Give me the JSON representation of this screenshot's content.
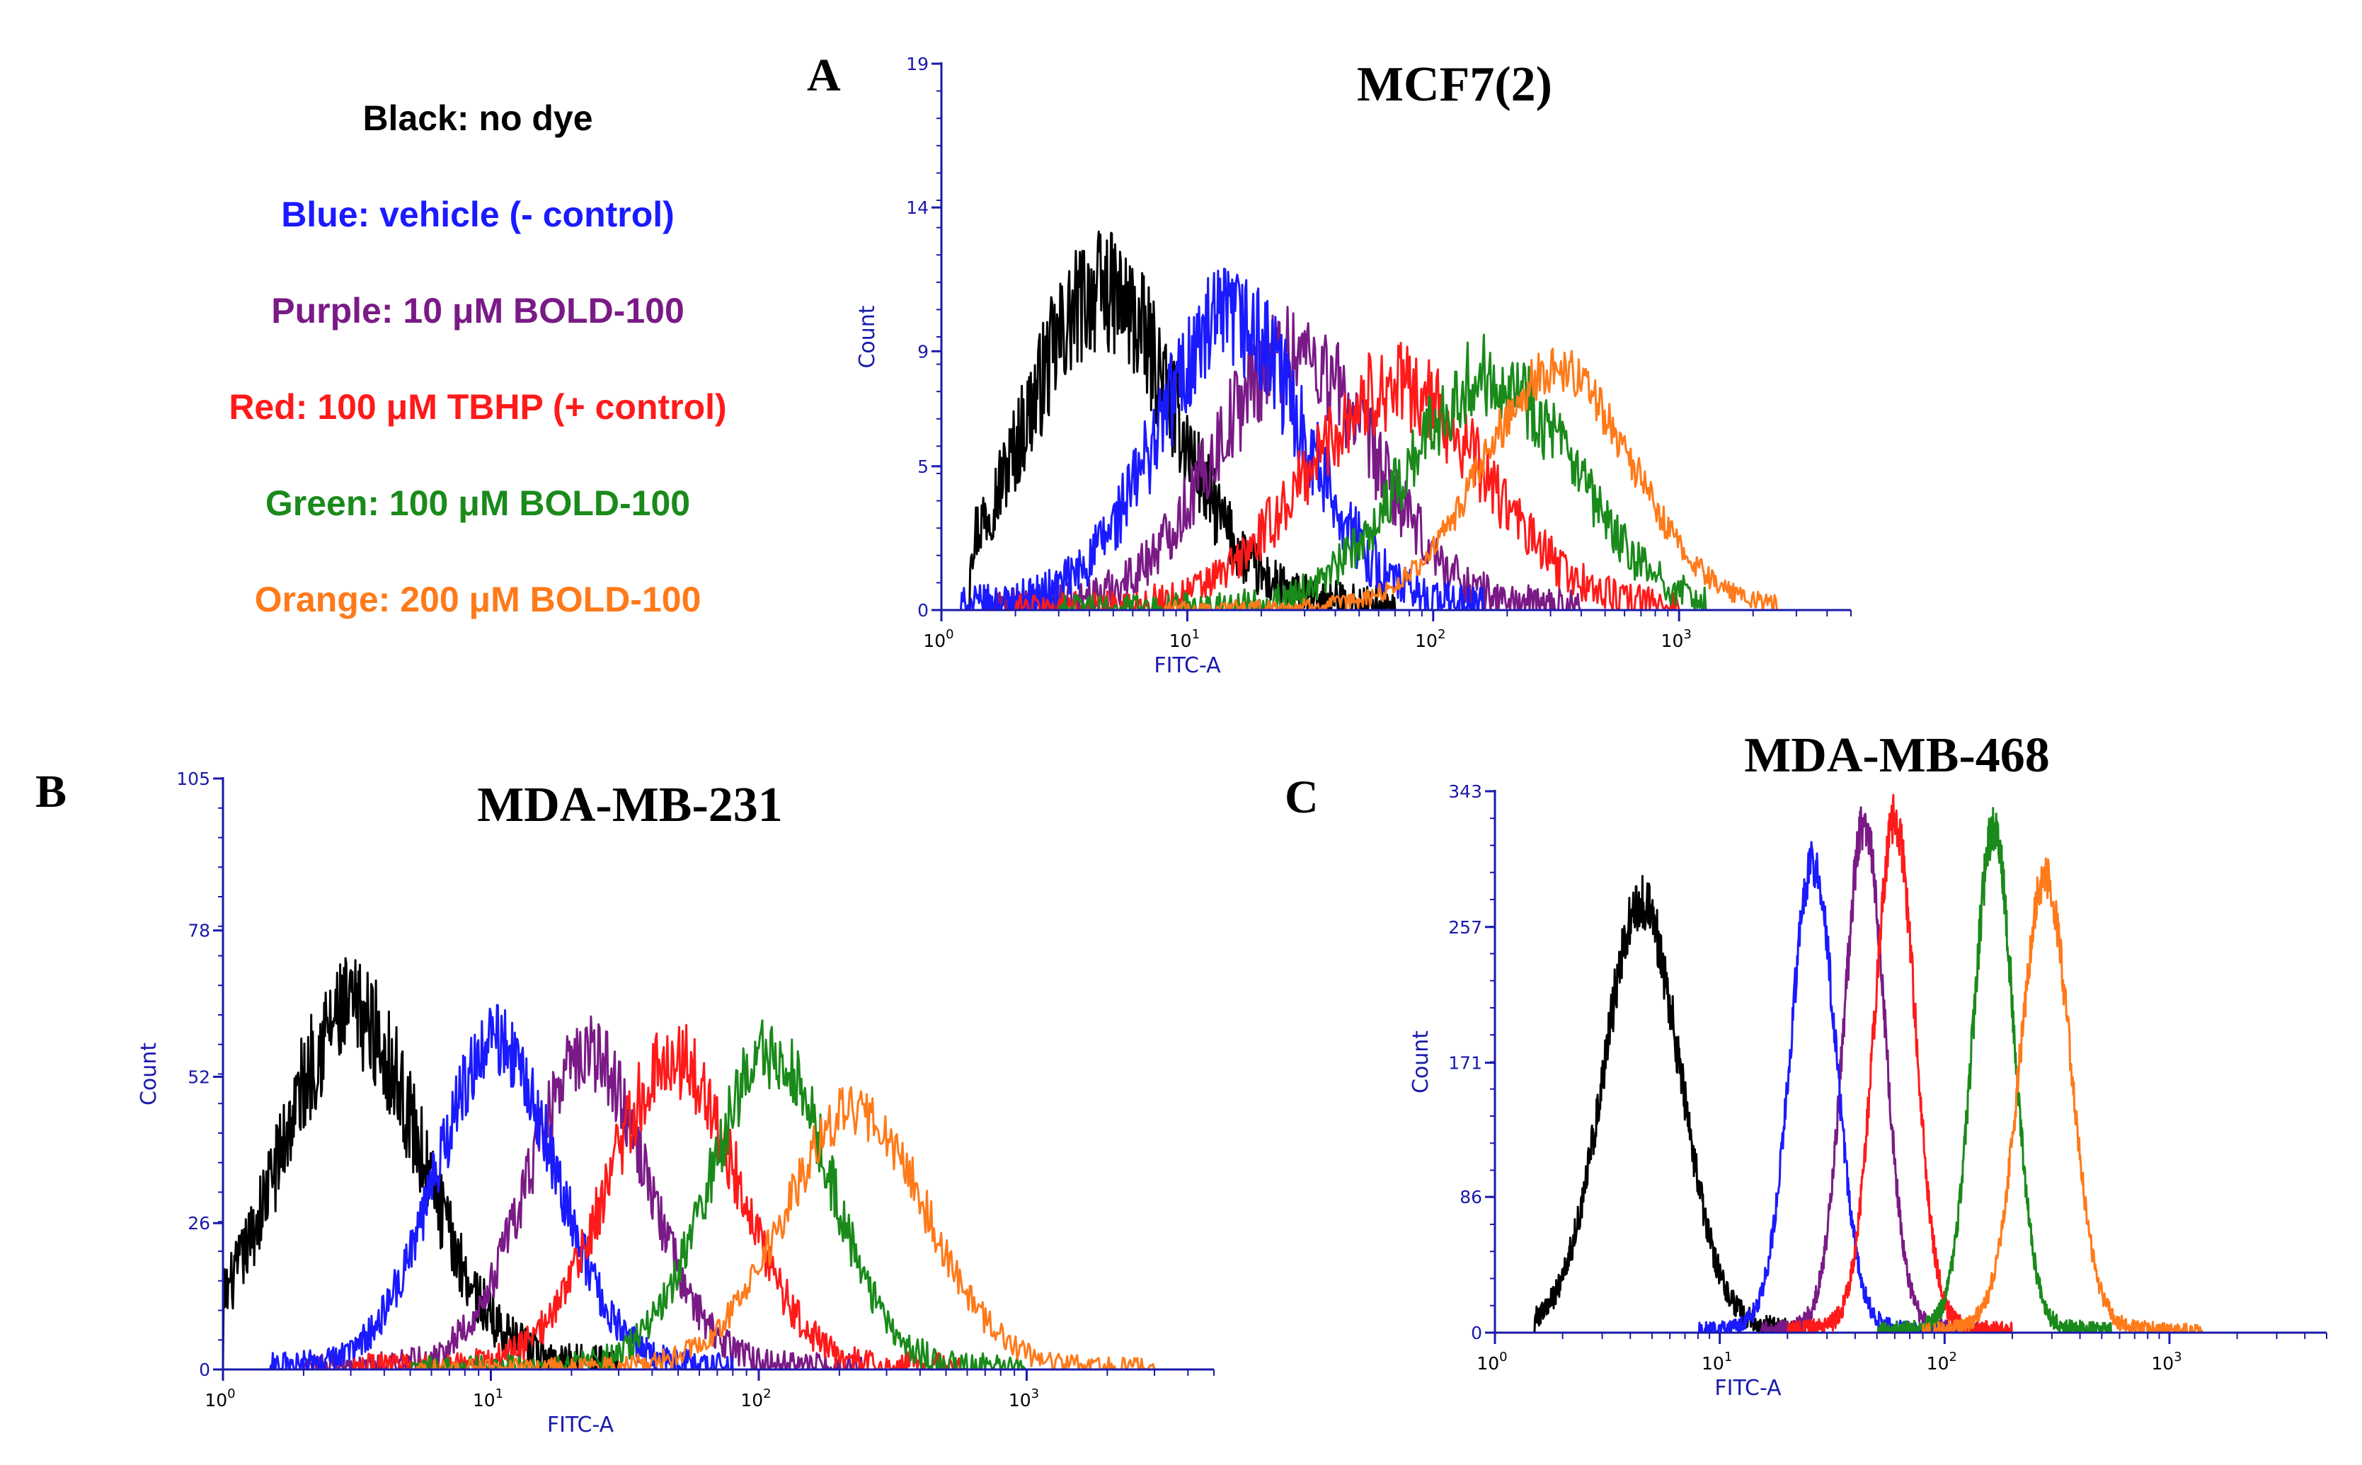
{
  "legend": {
    "items": [
      {
        "text": "Black: no dye",
        "color": "#000000"
      },
      {
        "text": "Blue: vehicle (- control)",
        "color": "#1a1aff"
      },
      {
        "text": "Purple: 10 μM BOLD-100",
        "color": "#7a1a86"
      },
      {
        "text": "Red: 100 μM TBHP (+ control)",
        "color": "#ff1a1a"
      },
      {
        "text": "Green: 100 μM BOLD-100",
        "color": "#1a8a1a"
      },
      {
        "text": "Orange: 200 μM BOLD-100",
        "color": "#ff7a1a"
      }
    ]
  },
  "colors": {
    "axis": "#1a1aaa",
    "axis_label": "#1a1aaa",
    "x_tick": "#000000",
    "y_tick": "#1a1aaa"
  },
  "chart_data": [
    {
      "type": "line",
      "panel": "A",
      "title": "MCF7(2)",
      "xlabel": "FITC-A",
      "ylabel": "Count",
      "xscale": "log",
      "xlim": [
        1,
        5000
      ],
      "ylim": [
        0,
        19
      ],
      "yticks": [
        0,
        5,
        9,
        14,
        19
      ],
      "xticks": [
        {
          "base": "10",
          "exp": "0",
          "value": 1
        },
        {
          "base": "10",
          "exp": "1",
          "value": 10
        },
        {
          "base": "10",
          "exp": "2",
          "value": 100
        },
        {
          "base": "10",
          "exp": "3",
          "value": 1000
        }
      ],
      "series": [
        {
          "name": "Black: no dye",
          "color": "black",
          "center": 4.5,
          "spread": 0.3,
          "peak": 10.8,
          "noise": 0.2,
          "xmin": 1.3,
          "xmax": 70
        },
        {
          "name": "Blue: vehicle (- control)",
          "color": "blue",
          "center": 15,
          "spread": 0.3,
          "peak": 9.8,
          "noise": 0.2,
          "xmin": 1.2,
          "xmax": 160
        },
        {
          "name": "Purple: 10 μM BOLD-100",
          "color": "purple",
          "center": 27,
          "spread": 0.32,
          "peak": 8.8,
          "noise": 0.2,
          "xmin": 1.5,
          "xmax": 400
        },
        {
          "name": "Red: 100 μM TBHP (+ control)",
          "color": "red",
          "center": 70,
          "spread": 0.36,
          "peak": 7.6,
          "noise": 0.2,
          "xmin": 2,
          "xmax": 1000
        },
        {
          "name": "Green: 100 μM BOLD-100",
          "color": "green",
          "center": 170,
          "spread": 0.33,
          "peak": 8.0,
          "noise": 0.18,
          "xmin": 3,
          "xmax": 1300
        },
        {
          "name": "Orange: 200 μM BOLD-100",
          "color": "orange",
          "center": 320,
          "spread": 0.3,
          "peak": 8.2,
          "noise": 0.1,
          "xmin": 8,
          "xmax": 2500
        }
      ]
    },
    {
      "type": "line",
      "panel": "B",
      "title": "MDA-MB-231",
      "xlabel": "FITC-A",
      "ylabel": "Count",
      "xscale": "log",
      "xlim": [
        1,
        5000
      ],
      "ylim": [
        0,
        105
      ],
      "yticks": [
        0,
        26,
        52,
        78,
        105
      ],
      "xticks": [
        {
          "base": "10",
          "exp": "0",
          "value": 1
        },
        {
          "base": "10",
          "exp": "1",
          "value": 10
        },
        {
          "base": "10",
          "exp": "2",
          "value": 100
        },
        {
          "base": "10",
          "exp": "3",
          "value": 1000
        }
      ],
      "series": [
        {
          "name": "Black: no dye",
          "color": "black",
          "center": 3.0,
          "spread": 0.26,
          "peak": 62,
          "noise": 0.16,
          "xmin": 1.0,
          "xmax": 30
        },
        {
          "name": "Blue: vehicle (- control)",
          "color": "blue",
          "center": 10.5,
          "spread": 0.22,
          "peak": 57,
          "noise": 0.12,
          "xmin": 1.5,
          "xmax": 80
        },
        {
          "name": "Purple: 10 μM BOLD-100",
          "color": "purple",
          "center": 23,
          "spread": 0.22,
          "peak": 55,
          "noise": 0.12,
          "xmin": 2,
          "xmax": 250
        },
        {
          "name": "Red: 100 μM TBHP (+ control)",
          "color": "red",
          "center": 48,
          "spread": 0.24,
          "peak": 54,
          "noise": 0.13,
          "xmin": 3,
          "xmax": 600
        },
        {
          "name": "Green: 100 μM BOLD-100",
          "color": "green",
          "center": 110,
          "spread": 0.22,
          "peak": 55,
          "noise": 0.12,
          "xmin": 5,
          "xmax": 1000
        },
        {
          "name": "Orange: 200 μM BOLD-100",
          "color": "orange",
          "center": 230,
          "spread": 0.26,
          "peak": 45,
          "noise": 0.11,
          "xmin": 5,
          "xmax": 3000
        }
      ]
    },
    {
      "type": "line",
      "panel": "C",
      "title": "MDA-MB-468",
      "xlabel": "FITC-A",
      "ylabel": "Count",
      "xscale": "log",
      "xlim": [
        1,
        5000
      ],
      "ylim": [
        0,
        343
      ],
      "yticks": [
        0,
        86,
        171,
        257,
        343
      ],
      "xticks": [
        {
          "base": "10",
          "exp": "0",
          "value": 1
        },
        {
          "base": "10",
          "exp": "1",
          "value": 10
        },
        {
          "base": "10",
          "exp": "2",
          "value": 100
        },
        {
          "base": "10",
          "exp": "3",
          "value": 1000
        }
      ],
      "series": [
        {
          "name": "Black: no dye",
          "color": "black",
          "center": 4.5,
          "spread": 0.17,
          "peak": 265,
          "noise": 0.07,
          "xmin": 1.5,
          "xmax": 22
        },
        {
          "name": "Blue: vehicle (- control)",
          "color": "blue",
          "center": 26,
          "spread": 0.1,
          "peak": 290,
          "noise": 0.05,
          "xmin": 8,
          "xmax": 120
        },
        {
          "name": "Purple: 10 μM BOLD-100",
          "color": "purple",
          "center": 44,
          "spread": 0.09,
          "peak": 315,
          "noise": 0.05,
          "xmin": 15,
          "xmax": 150
        },
        {
          "name": "Red: 100 μM TBHP (+ control)",
          "color": "red",
          "center": 60,
          "spread": 0.09,
          "peak": 318,
          "noise": 0.05,
          "xmin": 20,
          "xmax": 200
        },
        {
          "name": "Green: 100 μM BOLD-100",
          "color": "green",
          "center": 165,
          "spread": 0.09,
          "peak": 310,
          "noise": 0.05,
          "xmin": 50,
          "xmax": 550
        },
        {
          "name": "Orange: 200 μM BOLD-100",
          "color": "orange",
          "center": 280,
          "spread": 0.11,
          "peak": 282,
          "noise": 0.05,
          "xmin": 80,
          "xmax": 1400
        }
      ]
    }
  ]
}
